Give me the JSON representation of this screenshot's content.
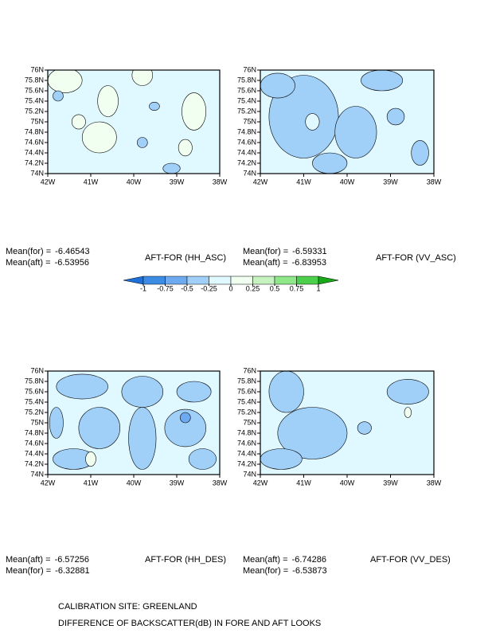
{
  "chart_data": [
    {
      "type": "contour",
      "title": "AFT-FOR (HH_ASC)",
      "stats": [
        {
          "label": "Mean(for) =",
          "value": -6.46543
        },
        {
          "label": "Mean(aft) =",
          "value": -6.53956
        }
      ],
      "xlim": [
        -42,
        -38
      ],
      "ylim": [
        74,
        76
      ],
      "xticks": [
        {
          "value": -42,
          "label": "42W"
        },
        {
          "value": -41,
          "label": "41W"
        },
        {
          "value": -40,
          "label": "40W"
        },
        {
          "value": -39,
          "label": "39W"
        },
        {
          "value": -38,
          "label": "38W"
        }
      ],
      "yticks": [
        {
          "value": 74,
          "label": "74N"
        },
        {
          "value": 74.2,
          "label": "74.2N"
        },
        {
          "value": 74.4,
          "label": "74.4N"
        },
        {
          "value": 74.6,
          "label": "74.6N"
        },
        {
          "value": 74.8,
          "label": "74.8N"
        },
        {
          "value": 75,
          "label": "75N"
        },
        {
          "value": 75.2,
          "label": "75.2N"
        },
        {
          "value": 75.4,
          "label": "75.4N"
        },
        {
          "value": 75.6,
          "label": "75.6N"
        },
        {
          "value": 75.8,
          "label": "75.8N"
        },
        {
          "value": 76,
          "label": "76N"
        }
      ]
    },
    {
      "type": "contour",
      "title": "AFT-FOR (VV_ASC)",
      "stats": [
        {
          "label": "Mean(for) =",
          "value": -6.59331
        },
        {
          "label": "Mean(aft) =",
          "value": -6.83953
        }
      ],
      "xlim": [
        -42,
        -38
      ],
      "ylim": [
        74,
        76
      ],
      "xticks": [
        {
          "value": -42,
          "label": "42W"
        },
        {
          "value": -41,
          "label": "41W"
        },
        {
          "value": -40,
          "label": "40W"
        },
        {
          "value": -39,
          "label": "39W"
        },
        {
          "value": -38,
          "label": "38W"
        }
      ],
      "yticks": [
        {
          "value": 74,
          "label": "74N"
        },
        {
          "value": 74.2,
          "label": "74.2N"
        },
        {
          "value": 74.4,
          "label": "74.4N"
        },
        {
          "value": 74.6,
          "label": "74.6N"
        },
        {
          "value": 74.8,
          "label": "74.8N"
        },
        {
          "value": 75,
          "label": "75N"
        },
        {
          "value": 75.2,
          "label": "75.2N"
        },
        {
          "value": 75.4,
          "label": "75.4N"
        },
        {
          "value": 75.6,
          "label": "75.6N"
        },
        {
          "value": 75.8,
          "label": "75.8N"
        },
        {
          "value": 76,
          "label": "76N"
        }
      ]
    },
    {
      "type": "contour",
      "title": "AFT-FOR (HH_DES)",
      "stats": [
        {
          "label": "Mean(aft) =",
          "value": -6.57256
        },
        {
          "label": "Mean(for) =",
          "value": -6.32881
        }
      ],
      "xlim": [
        -42,
        -38
      ],
      "ylim": [
        74,
        76
      ],
      "xticks": [
        {
          "value": -42,
          "label": "42W"
        },
        {
          "value": -41,
          "label": "41W"
        },
        {
          "value": -40,
          "label": "40W"
        },
        {
          "value": -39,
          "label": "39W"
        },
        {
          "value": -38,
          "label": "38W"
        }
      ],
      "yticks": [
        {
          "value": 74,
          "label": "74N"
        },
        {
          "value": 74.2,
          "label": "74.2N"
        },
        {
          "value": 74.4,
          "label": "74.4N"
        },
        {
          "value": 74.6,
          "label": "74.6N"
        },
        {
          "value": 74.8,
          "label": "74.8N"
        },
        {
          "value": 75,
          "label": "75N"
        },
        {
          "value": 75.2,
          "label": "75.2N"
        },
        {
          "value": 75.4,
          "label": "75.4N"
        },
        {
          "value": 75.6,
          "label": "75.6N"
        },
        {
          "value": 75.8,
          "label": "75.8N"
        },
        {
          "value": 76,
          "label": "76N"
        }
      ]
    },
    {
      "type": "contour",
      "title": "AFT-FOR (VV_DES)",
      "stats": [
        {
          "label": "Mean(aft) =",
          "value": -6.74286
        },
        {
          "label": "Mean(for) =",
          "value": -6.53873
        }
      ],
      "xlim": [
        -42,
        -38
      ],
      "ylim": [
        74,
        76
      ],
      "xticks": [
        {
          "value": -42,
          "label": "42W"
        },
        {
          "value": -41,
          "label": "41W"
        },
        {
          "value": -40,
          "label": "40W"
        },
        {
          "value": -39,
          "label": "39W"
        },
        {
          "value": -38,
          "label": "38W"
        }
      ],
      "yticks": [
        {
          "value": 74,
          "label": "74N"
        },
        {
          "value": 74.2,
          "label": "74.2N"
        },
        {
          "value": 74.4,
          "label": "74.4N"
        },
        {
          "value": 74.6,
          "label": "74.6N"
        },
        {
          "value": 74.8,
          "label": "74.8N"
        },
        {
          "value": 75,
          "label": "75N"
        },
        {
          "value": 75.2,
          "label": "75.2N"
        },
        {
          "value": 75.4,
          "label": "75.4N"
        },
        {
          "value": 75.6,
          "label": "75.6N"
        },
        {
          "value": 75.8,
          "label": "75.8N"
        },
        {
          "value": 76,
          "label": "76N"
        }
      ]
    }
  ],
  "colorbar": {
    "levels": [
      -1,
      -0.75,
      -0.5,
      -0.25,
      0,
      0.25,
      0.5,
      0.75,
      1
    ],
    "colors": [
      "#1e6fd8",
      "#3c8ce6",
      "#6eaaf0",
      "#a0cff8",
      "#e0f8ff",
      "#f0fff0",
      "#c6f2c0",
      "#8ee88a",
      "#4cd04c",
      "#18a818"
    ]
  },
  "footer": [
    "CALIBRATION SITE: GREENLAND",
    "DIFFERENCE OF BACKSCATTER(dB) IN FORE AND AFT LOOKS"
  ]
}
